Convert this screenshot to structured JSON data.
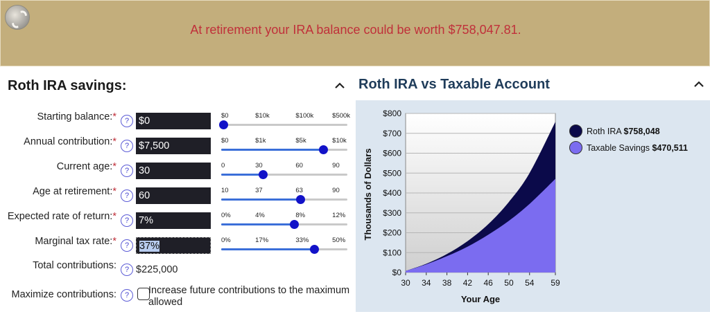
{
  "banner": {
    "message": "At retirement your IRA balance could be worth $758,047.81."
  },
  "left_panel": {
    "title": "Roth IRA savings:",
    "rows": [
      {
        "label": "Starting balance:",
        "value": "$0",
        "ticks": [
          "$0",
          "$10k",
          "$100k",
          "$500k"
        ],
        "slider_level": 0.02
      },
      {
        "label": "Annual contribution:",
        "value": "$7,500",
        "ticks": [
          "$0",
          "$1k",
          "$5k",
          "$10k"
        ],
        "slider_level": 0.81
      },
      {
        "label": "Current age:",
        "value": "30",
        "ticks": [
          "0",
          "30",
          "60",
          "90"
        ],
        "slider_level": 0.33
      },
      {
        "label": "Age at retirement:",
        "value": "60",
        "ticks": [
          "10",
          "37",
          "63",
          "90"
        ],
        "slider_level": 0.63
      },
      {
        "label": "Expected rate of return:",
        "value": "7%",
        "ticks": [
          "0%",
          "4%",
          "8%",
          "12%"
        ],
        "slider_level": 0.58
      },
      {
        "label": "Marginal tax rate:",
        "value": "37%",
        "ticks": [
          "0%",
          "17%",
          "33%",
          "50%"
        ],
        "slider_level": 0.74
      }
    ],
    "required_marker": "*",
    "help_glyph": "?",
    "total_contributions_label": "Total contributions:",
    "total_contributions_value": "$225,000",
    "maximize_label": "Maximize contributions:",
    "maximize_checkbox_label": "Increase future contributions to the maximum allowed",
    "maximize_checked": false
  },
  "right_panel": {
    "title": "Roth IRA vs Taxable Account"
  },
  "chart_data": {
    "type": "area",
    "title": "",
    "xlabel": "Your Age",
    "ylabel": "Thousands of Dollars",
    "x_ticks": [
      "30",
      "34",
      "38",
      "42",
      "46",
      "50",
      "54",
      "59"
    ],
    "y_ticks": [
      "$0",
      "$100",
      "$200",
      "$300",
      "$400",
      "$500",
      "$600",
      "$700",
      "$800"
    ],
    "xlim": [
      30,
      59
    ],
    "ylim": [
      0,
      800
    ],
    "grid": true,
    "legend_position": "right",
    "series": [
      {
        "name": "Roth IRA",
        "legend_value": "$758,048",
        "color": "#0b0a4a",
        "x": [
          30,
          34,
          38,
          42,
          46,
          50,
          54,
          59
        ],
        "values": [
          8,
          44,
          93,
          158,
          243,
          355,
          500,
          758
        ]
      },
      {
        "name": "Taxable Savings",
        "legend_value": "$470,511",
        "color": "#7b6cf0",
        "x": [
          30,
          34,
          38,
          42,
          46,
          50,
          54,
          59
        ],
        "values": [
          8,
          41,
          82,
          130,
          190,
          260,
          345,
          471
        ]
      }
    ]
  },
  "icons": {
    "logo": "brand-logo-icon",
    "collapse": "chevron-up-icon",
    "help": "help-circle-icon"
  },
  "colors": {
    "banner_bg": "#c3ae7c",
    "banner_text": "#c0303a",
    "field_bg": "#1f1f27",
    "slider_fill": "#3b6fd9",
    "slider_knob": "#1212c8",
    "chart_bg": "#dce6f0"
  }
}
